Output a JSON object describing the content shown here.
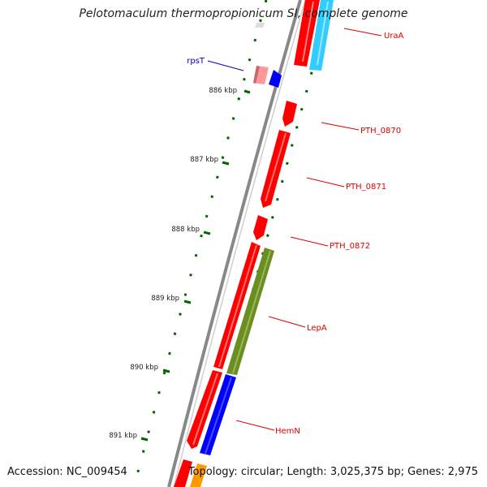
{
  "title": "Pelotomaculum thermopropionicum SI, complete genome",
  "footer": {
    "accession_label": "Accession:",
    "accession": "NC_009454",
    "topology_label": "Topology:",
    "topology": "circular",
    "length_label": "Length:",
    "length": "3,025,375 bp",
    "genes_label": "Genes:",
    "genes": "2,975"
  },
  "ticks": [
    "886 kbp",
    "887 kbp",
    "888 kbp",
    "889 kbp",
    "890 kbp",
    "891 kbp"
  ],
  "genes": [
    {
      "name": "UraA",
      "color": "#dd0000"
    },
    {
      "name": "rpsT",
      "color": "#0000cc"
    },
    {
      "name": "PTH_0870",
      "color": "#dd0000"
    },
    {
      "name": "PTH_0871",
      "color": "#dd0000"
    },
    {
      "name": "PTH_0872",
      "color": "#dd0000"
    },
    {
      "name": "LepA",
      "color": "#dd0000"
    },
    {
      "name": "HemN",
      "color": "#dd0000"
    }
  ],
  "colors": {
    "backbone": "#808080",
    "cds": "#ff0000",
    "tick": "#006600",
    "cyan": "#33ccff",
    "olive": "#6b8e23",
    "blue": "#0000ff",
    "pink": "#ff9999",
    "orange": "#ff9900"
  }
}
